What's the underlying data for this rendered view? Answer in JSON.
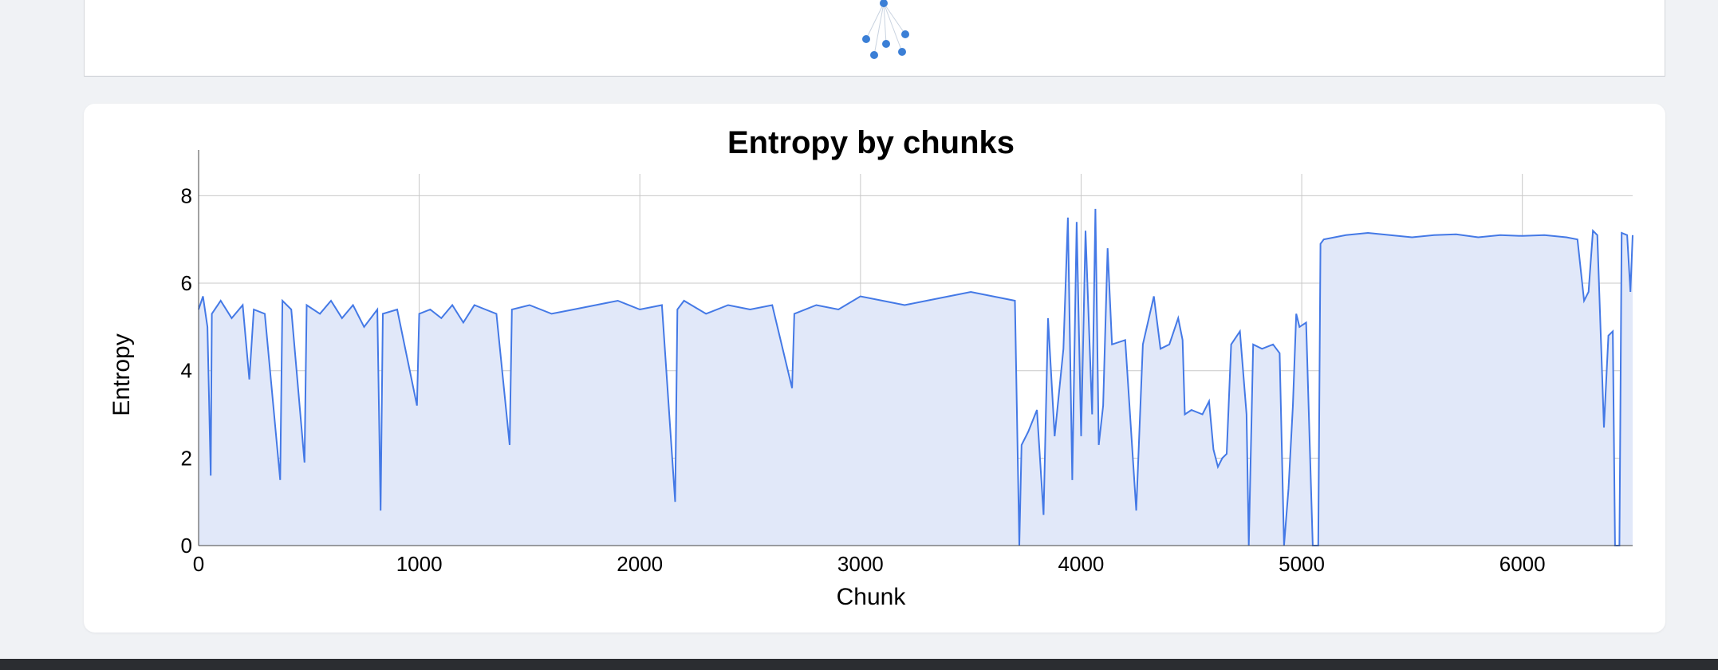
{
  "colors": {
    "line": "#4479e6",
    "fill": "#e1e8f9",
    "grid": "#c8c8c8",
    "node": "#3b7fd6"
  },
  "chart_data": {
    "type": "area",
    "title": "Entropy by chunks",
    "xlabel": "Chunk",
    "ylabel": "Entropy",
    "xlim": [
      0,
      6500
    ],
    "ylim": [
      0,
      8.5
    ],
    "xticks": [
      "0",
      "1000",
      "2000",
      "3000",
      "4000",
      "5000",
      "6000"
    ],
    "yticks": [
      "0",
      "2",
      "4",
      "6",
      "8"
    ],
    "grid": true,
    "series": [
      {
        "points": [
          [
            0,
            5.4
          ],
          [
            20,
            5.7
          ],
          [
            40,
            5.0
          ],
          [
            55,
            1.6
          ],
          [
            60,
            5.3
          ],
          [
            100,
            5.6
          ],
          [
            150,
            5.2
          ],
          [
            200,
            5.5
          ],
          [
            230,
            3.8
          ],
          [
            250,
            5.4
          ],
          [
            300,
            5.3
          ],
          [
            370,
            1.5
          ],
          [
            380,
            5.6
          ],
          [
            420,
            5.4
          ],
          [
            480,
            1.9
          ],
          [
            490,
            5.5
          ],
          [
            550,
            5.3
          ],
          [
            600,
            5.6
          ],
          [
            650,
            5.2
          ],
          [
            700,
            5.5
          ],
          [
            750,
            5.0
          ],
          [
            810,
            5.4
          ],
          [
            825,
            0.8
          ],
          [
            835,
            5.3
          ],
          [
            900,
            5.4
          ],
          [
            990,
            3.2
          ],
          [
            1000,
            5.3
          ],
          [
            1050,
            5.4
          ],
          [
            1100,
            5.2
          ],
          [
            1150,
            5.5
          ],
          [
            1200,
            5.1
          ],
          [
            1250,
            5.5
          ],
          [
            1300,
            5.4
          ],
          [
            1350,
            5.3
          ],
          [
            1410,
            2.3
          ],
          [
            1420,
            5.4
          ],
          [
            1500,
            5.5
          ],
          [
            1600,
            5.3
          ],
          [
            1700,
            5.4
          ],
          [
            1800,
            5.5
          ],
          [
            1900,
            5.6
          ],
          [
            2000,
            5.4
          ],
          [
            2100,
            5.5
          ],
          [
            2160,
            1.0
          ],
          [
            2170,
            5.4
          ],
          [
            2200,
            5.6
          ],
          [
            2300,
            5.3
          ],
          [
            2400,
            5.5
          ],
          [
            2500,
            5.4
          ],
          [
            2600,
            5.5
          ],
          [
            2690,
            3.6
          ],
          [
            2700,
            5.3
          ],
          [
            2800,
            5.5
          ],
          [
            2900,
            5.4
          ],
          [
            3000,
            5.7
          ],
          [
            3100,
            5.6
          ],
          [
            3200,
            5.5
          ],
          [
            3300,
            5.6
          ],
          [
            3400,
            5.7
          ],
          [
            3500,
            5.8
          ],
          [
            3600,
            5.7
          ],
          [
            3700,
            5.6
          ],
          [
            3720,
            0.0
          ],
          [
            3730,
            2.3
          ],
          [
            3760,
            2.6
          ],
          [
            3800,
            3.1
          ],
          [
            3830,
            0.7
          ],
          [
            3850,
            5.2
          ],
          [
            3880,
            2.5
          ],
          [
            3920,
            4.5
          ],
          [
            3940,
            7.5
          ],
          [
            3960,
            1.5
          ],
          [
            3980,
            7.4
          ],
          [
            4000,
            2.5
          ],
          [
            4020,
            7.2
          ],
          [
            4050,
            3.0
          ],
          [
            4065,
            7.7
          ],
          [
            4080,
            2.3
          ],
          [
            4100,
            3.2
          ],
          [
            4120,
            6.8
          ],
          [
            4140,
            4.6
          ],
          [
            4200,
            4.7
          ],
          [
            4250,
            0.8
          ],
          [
            4280,
            4.6
          ],
          [
            4330,
            5.7
          ],
          [
            4360,
            4.5
          ],
          [
            4400,
            4.6
          ],
          [
            4440,
            5.2
          ],
          [
            4460,
            4.7
          ],
          [
            4470,
            3.0
          ],
          [
            4500,
            3.1
          ],
          [
            4550,
            3.0
          ],
          [
            4580,
            3.3
          ],
          [
            4600,
            2.2
          ],
          [
            4620,
            1.8
          ],
          [
            4640,
            2.0
          ],
          [
            4660,
            2.1
          ],
          [
            4680,
            4.6
          ],
          [
            4720,
            4.9
          ],
          [
            4750,
            3.0
          ],
          [
            4760,
            0.0
          ],
          [
            4780,
            4.6
          ],
          [
            4820,
            4.5
          ],
          [
            4870,
            4.6
          ],
          [
            4900,
            4.4
          ],
          [
            4920,
            0.0
          ],
          [
            4940,
            1.3
          ],
          [
            4960,
            3.2
          ],
          [
            4975,
            5.3
          ],
          [
            4990,
            5.0
          ],
          [
            5020,
            5.1
          ],
          [
            5050,
            0.0
          ],
          [
            5075,
            0.0
          ],
          [
            5085,
            6.9
          ],
          [
            5100,
            7.0
          ],
          [
            5200,
            7.1
          ],
          [
            5300,
            7.15
          ],
          [
            5400,
            7.1
          ],
          [
            5500,
            7.05
          ],
          [
            5600,
            7.1
          ],
          [
            5700,
            7.12
          ],
          [
            5800,
            7.05
          ],
          [
            5900,
            7.1
          ],
          [
            6000,
            7.08
          ],
          [
            6100,
            7.1
          ],
          [
            6200,
            7.05
          ],
          [
            6250,
            7.0
          ],
          [
            6280,
            5.6
          ],
          [
            6300,
            5.8
          ],
          [
            6320,
            7.2
          ],
          [
            6340,
            7.1
          ],
          [
            6370,
            2.7
          ],
          [
            6390,
            4.8
          ],
          [
            6410,
            4.9
          ],
          [
            6420,
            0.0
          ],
          [
            6440,
            0.0
          ],
          [
            6450,
            7.15
          ],
          [
            6475,
            7.1
          ],
          [
            6490,
            5.8
          ],
          [
            6500,
            7.1
          ]
        ]
      }
    ]
  }
}
